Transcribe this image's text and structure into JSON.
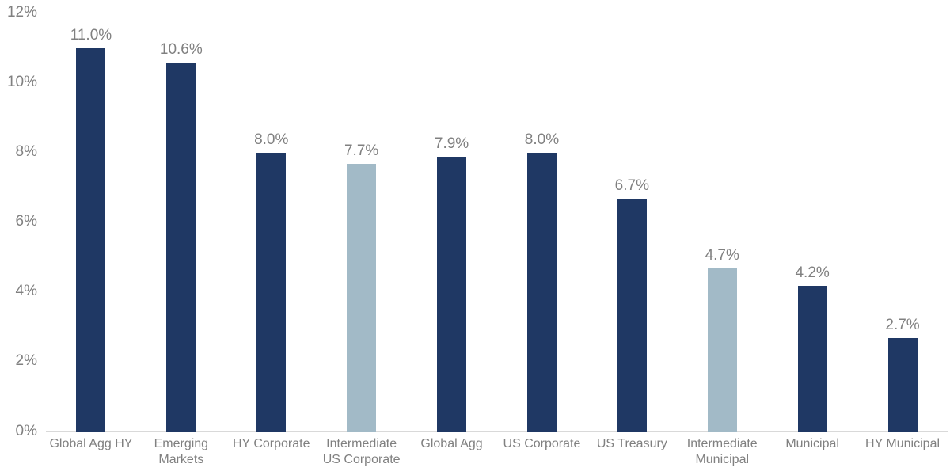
{
  "chart_data": {
    "type": "bar",
    "title": "",
    "xlabel": "",
    "ylabel": "",
    "ylim": [
      0,
      12
    ],
    "grid": false,
    "legend": "none",
    "y_ticks": [
      "0%",
      "2%",
      "4%",
      "6%",
      "8%",
      "10%",
      "12%"
    ],
    "categories": [
      "Global Agg HY",
      "Emerging Markets",
      "HY Corporate",
      "Intermediate US Corporate",
      "Global Agg",
      "US Corporate",
      "US Treasury",
      "Intermediate Municipal",
      "Municipal",
      "HY Municipal"
    ],
    "values": [
      11.0,
      10.6,
      8.0,
      7.7,
      7.9,
      8.0,
      6.7,
      4.7,
      4.2,
      2.7
    ],
    "bar_labels": [
      "11.0%",
      "10.6%",
      "8.0%",
      "7.7%",
      "7.9%",
      "8.0%",
      "6.7%",
      "4.7%",
      "4.2%",
      "2.7%"
    ],
    "bar_color_keys": [
      "primary",
      "primary",
      "primary",
      "highlight",
      "primary",
      "primary",
      "primary",
      "highlight",
      "primary",
      "primary"
    ],
    "highlighted_categories": [
      "Intermediate US Corporate",
      "Intermediate Municipal"
    ]
  },
  "colors": {
    "primary_bar": "#1f3864",
    "highlight_bar": "#a2bac7",
    "axis_text": "#808080",
    "baseline": "#d9d9d9",
    "background": "#ffffff"
  }
}
